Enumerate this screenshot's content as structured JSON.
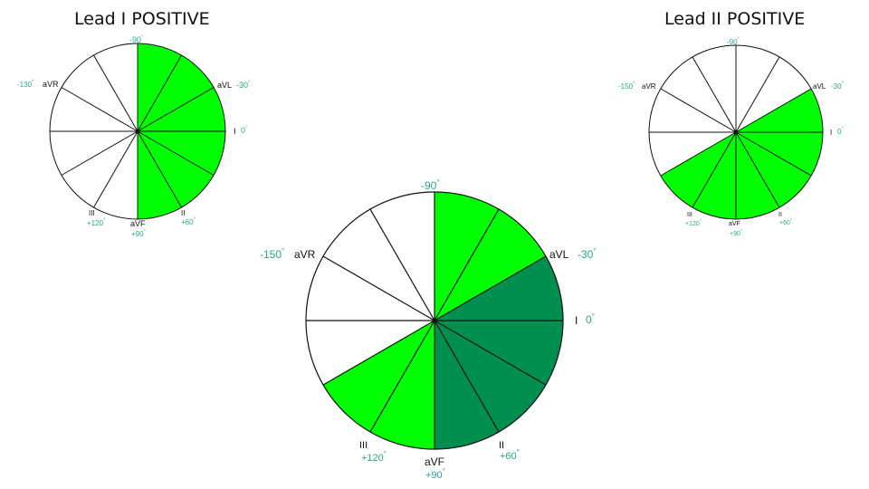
{
  "colors": {
    "bright_green": "#00ff00",
    "dark_green": "#008f4e",
    "angle_teal": "#2aa58a",
    "line": "#111111"
  },
  "titles": {
    "left": "Lead I POSITIVE",
    "right": "Lead II POSITIVE"
  },
  "lead_names": {
    "I": "I",
    "II": "II",
    "III": "III",
    "aVR": "aVR",
    "aVL": "aVL",
    "aVF": "aVF"
  },
  "angle_labels": {
    "top": "-90",
    "aVL": "-30",
    "I": "0",
    "II": "+60",
    "aVF": "+90",
    "III": "+120",
    "aVR_left": "-130",
    "aVR": "-150",
    "degree": "°"
  },
  "wheels": {
    "lead_i": {
      "sector_width_deg": 30,
      "shaded_from_deg": -90,
      "shaded_to_deg": 90
    },
    "lead_ii": {
      "sector_width_deg": 30,
      "shaded_from_deg": -30,
      "shaded_to_deg": 150
    },
    "combined": {
      "sector_width_deg": 30,
      "bright_from_deg": -90,
      "bright_to_deg": -30,
      "dark_from_deg": -30,
      "dark_to_deg": 90,
      "bright2_from_deg": 90,
      "bright2_to_deg": 150
    }
  }
}
